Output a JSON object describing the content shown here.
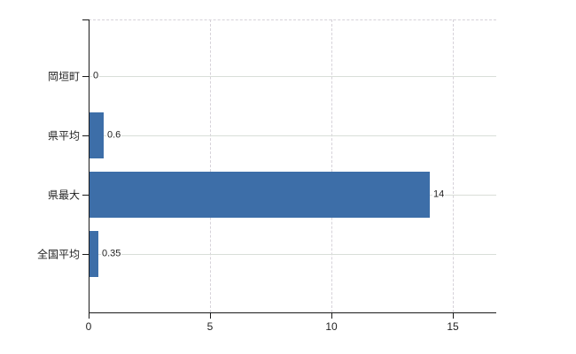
{
  "chart_data": {
    "type": "bar",
    "orientation": "horizontal",
    "title": "",
    "categories": [
      "岡垣町",
      "県平均",
      "県最大",
      "全国平均"
    ],
    "values": [
      0,
      0.6,
      14,
      0.35
    ],
    "value_labels": [
      "0",
      "0.6",
      "14",
      "0.35"
    ],
    "x_ticks": [
      0,
      5,
      10,
      15
    ],
    "x_tick_labels": [
      "0",
      "5",
      "10",
      "15"
    ],
    "xlim": [
      0,
      16.8
    ],
    "ylabel": "",
    "xlabel": "",
    "legend": null,
    "grid": {
      "horizontal": "solid",
      "vertical": "dashed",
      "top_border": "dashed"
    },
    "colors": {
      "bar": "#3d6ea8",
      "axis": "#1a1a1a",
      "h_grid": "#d9ded8",
      "v_grid": "#d6d2d9",
      "text": "#1f1f1f",
      "background": "#ffffff"
    }
  }
}
